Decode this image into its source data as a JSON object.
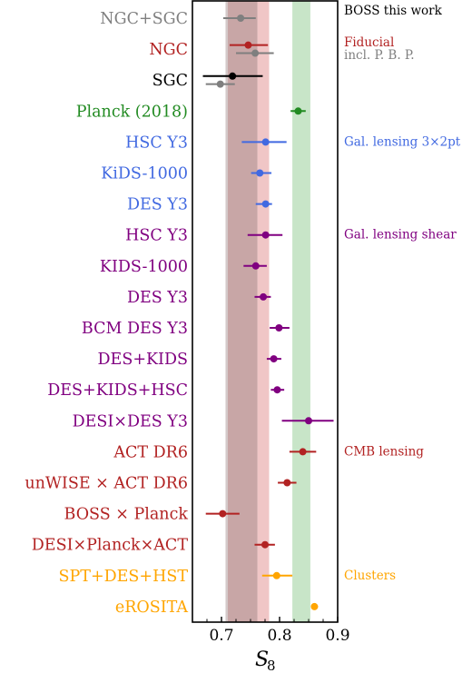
{
  "chart_data": {
    "type": "scatter",
    "subtype": "forest-plot",
    "xlabel": "S",
    "xlabel_subscript": "8",
    "xlim": [
      0.65,
      0.9
    ],
    "xticks": [
      "0.7",
      "0.8",
      "0.9"
    ],
    "grid": false,
    "bands": [
      {
        "from": 0.707,
        "to": 0.762,
        "color": "#a7706f",
        "opacity": 0.62
      },
      {
        "from": 0.762,
        "to": 0.782,
        "color": "#e7a3a3",
        "opacity": 0.62
      },
      {
        "from": 0.707,
        "to": 0.711,
        "color": "#d9d9d9",
        "opacity": 0.7
      },
      {
        "from": 0.822,
        "to": 0.853,
        "color": "#b6dcb6",
        "opacity": 0.75
      }
    ],
    "rows": [
      {
        "label": "NGC+SGC",
        "color": "#7f7f7f",
        "points": [
          {
            "value": 0.733,
            "lo": 0.703,
            "hi": 0.759,
            "color": "#7f7f7f"
          }
        ]
      },
      {
        "label": "NGC",
        "color": "#b22222",
        "points": [
          {
            "value": 0.746,
            "lo": 0.714,
            "hi": 0.78,
            "color": "#b22222",
            "offset": -0.26
          },
          {
            "value": 0.758,
            "lo": 0.725,
            "hi": 0.79,
            "color": "#7f7f7f",
            "offset": 0.26
          }
        ]
      },
      {
        "label": "SGC",
        "color": "#000000",
        "points": [
          {
            "value": 0.719,
            "lo": 0.668,
            "hi": 0.771,
            "color": "#000000",
            "offset": -0.26
          },
          {
            "value": 0.698,
            "lo": 0.673,
            "hi": 0.723,
            "color": "#7f7f7f",
            "offset": 0.26
          }
        ]
      },
      {
        "label": "Planck (2018)",
        "color": "#228b22",
        "points": [
          {
            "value": 0.832,
            "lo": 0.819,
            "hi": 0.845,
            "color": "#228b22"
          }
        ]
      },
      {
        "label": "HSC Y3",
        "color": "#4169e1",
        "points": [
          {
            "value": 0.776,
            "lo": 0.735,
            "hi": 0.812,
            "color": "#4169e1"
          }
        ]
      },
      {
        "label": "KiDS-1000",
        "color": "#4169e1",
        "points": [
          {
            "value": 0.766,
            "lo": 0.751,
            "hi": 0.786,
            "color": "#4169e1"
          }
        ]
      },
      {
        "label": "DES Y3",
        "color": "#4169e1",
        "points": [
          {
            "value": 0.776,
            "lo": 0.759,
            "hi": 0.787,
            "color": "#4169e1"
          }
        ]
      },
      {
        "label": "HSC Y3",
        "color": "#800080",
        "points": [
          {
            "value": 0.776,
            "lo": 0.745,
            "hi": 0.805,
            "color": "#800080"
          }
        ]
      },
      {
        "label": "KIDS-1000",
        "color": "#800080",
        "points": [
          {
            "value": 0.759,
            "lo": 0.738,
            "hi": 0.778,
            "color": "#800080"
          }
        ]
      },
      {
        "label": "DES Y3",
        "color": "#800080",
        "points": [
          {
            "value": 0.772,
            "lo": 0.757,
            "hi": 0.785,
            "color": "#800080"
          }
        ]
      },
      {
        "label": "BCM DES Y3",
        "color": "#800080",
        "points": [
          {
            "value": 0.799,
            "lo": 0.783,
            "hi": 0.817,
            "color": "#800080"
          }
        ]
      },
      {
        "label": "DES+KIDS",
        "color": "#800080",
        "points": [
          {
            "value": 0.79,
            "lo": 0.778,
            "hi": 0.803,
            "color": "#800080"
          }
        ]
      },
      {
        "label": "DES+KIDS+HSC",
        "color": "#800080",
        "points": [
          {
            "value": 0.796,
            "lo": 0.785,
            "hi": 0.808,
            "color": "#800080"
          }
        ]
      },
      {
        "label": "DESI×DES Y3",
        "color": "#800080",
        "points": [
          {
            "value": 0.85,
            "lo": 0.804,
            "hi": 0.893,
            "color": "#800080"
          }
        ]
      },
      {
        "label": "ACT DR6",
        "color": "#b22222",
        "points": [
          {
            "value": 0.84,
            "lo": 0.817,
            "hi": 0.863,
            "color": "#b22222"
          }
        ]
      },
      {
        "label": "unWISE × ACT DR6",
        "color": "#b22222",
        "points": [
          {
            "value": 0.813,
            "lo": 0.797,
            "hi": 0.829,
            "color": "#b22222"
          }
        ]
      },
      {
        "label": "BOSS × Planck",
        "color": "#b22222",
        "points": [
          {
            "value": 0.702,
            "lo": 0.673,
            "hi": 0.731,
            "color": "#b22222"
          }
        ]
      },
      {
        "label": "DESI×Planck×ACT",
        "color": "#b22222",
        "points": [
          {
            "value": 0.775,
            "lo": 0.757,
            "hi": 0.792,
            "color": "#b22222"
          }
        ]
      },
      {
        "label": "SPT+DES+HST",
        "color": "#ffa500",
        "points": [
          {
            "value": 0.795,
            "lo": 0.77,
            "hi": 0.822,
            "color": "#ffa500"
          }
        ]
      },
      {
        "label": "eROSITA",
        "color": "#ffa500",
        "points": [
          {
            "value": 0.86,
            "lo": 0.855,
            "hi": 0.866,
            "color": "#ffa500"
          }
        ]
      }
    ],
    "annotations": [
      {
        "text": "BOSS this work",
        "color": "#000000",
        "row": 0
      },
      {
        "text": "Fiducial",
        "color": "#b22222",
        "row": 1
      },
      {
        "text": "incl. P. B. P.",
        "color": "#7f7f7f",
        "row": 1
      },
      {
        "text": "Gal. lensing 3×2pt",
        "color": "#4169e1",
        "row": 4
      },
      {
        "text": "Gal. lensing shear",
        "color": "#800080",
        "row": 7
      },
      {
        "text": "CMB lensing",
        "color": "#b22222",
        "row": 14
      },
      {
        "text": "Clusters",
        "color": "#ffa500",
        "row": 18
      }
    ]
  }
}
